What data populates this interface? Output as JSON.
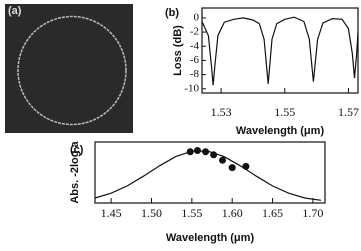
{
  "chart_data": [
    {
      "type": "image",
      "label": "(a)"
    },
    {
      "type": "line",
      "label": "(b)",
      "ylabel": "Loss (dB)",
      "xlabel": "Wavelength (μm)",
      "xlim": [
        1.524,
        1.573
      ],
      "ylim": [
        -10.6,
        1.4
      ],
      "xticks": [
        1.53,
        1.55,
        1.57
      ],
      "yticks": [
        0,
        -2,
        -4,
        -6,
        -8,
        -10
      ],
      "series": [
        {
          "color": "#111111",
          "x": [
            1.524,
            1.526,
            1.527,
            1.5275,
            1.528,
            1.529,
            1.531,
            1.534,
            1.537,
            1.54,
            1.542,
            1.5435,
            1.5448,
            1.546,
            1.5475,
            1.55,
            1.553,
            1.556,
            1.5577,
            1.559,
            1.5603,
            1.562,
            1.565,
            1.568,
            1.57,
            1.5712,
            1.5719,
            1.5726,
            1.573
          ],
          "values": [
            -0.5,
            -2.5,
            -7,
            -9.5,
            -7,
            -2.5,
            -0.6,
            -0.2,
            0,
            -0.3,
            -0.8,
            -3,
            -9.3,
            -3,
            -0.8,
            -0.2,
            0.1,
            -0.5,
            -3,
            -9,
            -3,
            -0.7,
            -0.1,
            -0.2,
            -1.5,
            -5,
            -8.5,
            -5,
            -2
          ]
        }
      ]
    },
    {
      "type": "line",
      "label": "(c)",
      "ylabel": "Abs. -2log a",
      "xlabel": "Wavelength (μm)",
      "xlim": [
        1.43,
        1.715
      ],
      "ylim": [
        0,
        1
      ],
      "xticks": [
        1.45,
        {
          "value": 1.5,
          "label": "1.50"
        },
        1.55,
        {
          "value": 1.6,
          "label": "1.60"
        },
        1.65,
        {
          "value": 1.7,
          "label": "1.70"
        }
      ],
      "series": [
        {
          "color": "#111111",
          "mode": "line",
          "x": [
            1.43,
            1.45,
            1.47,
            1.49,
            1.51,
            1.53,
            1.55,
            1.57,
            1.59,
            1.61,
            1.63,
            1.65,
            1.67,
            1.69,
            1.71
          ],
          "values": [
            0.082,
            0.16,
            0.28,
            0.44,
            0.61,
            0.76,
            0.85,
            0.85,
            0.76,
            0.61,
            0.44,
            0.28,
            0.16,
            0.082,
            0.045
          ]
        },
        {
          "color": "#111111",
          "mode": "markers",
          "x": [
            1.548,
            1.557,
            1.567,
            1.577,
            1.588,
            1.6,
            1.617
          ],
          "values": [
            0.84,
            0.86,
            0.84,
            0.79,
            0.7,
            0.58,
            0.6
          ]
        }
      ]
    }
  ]
}
